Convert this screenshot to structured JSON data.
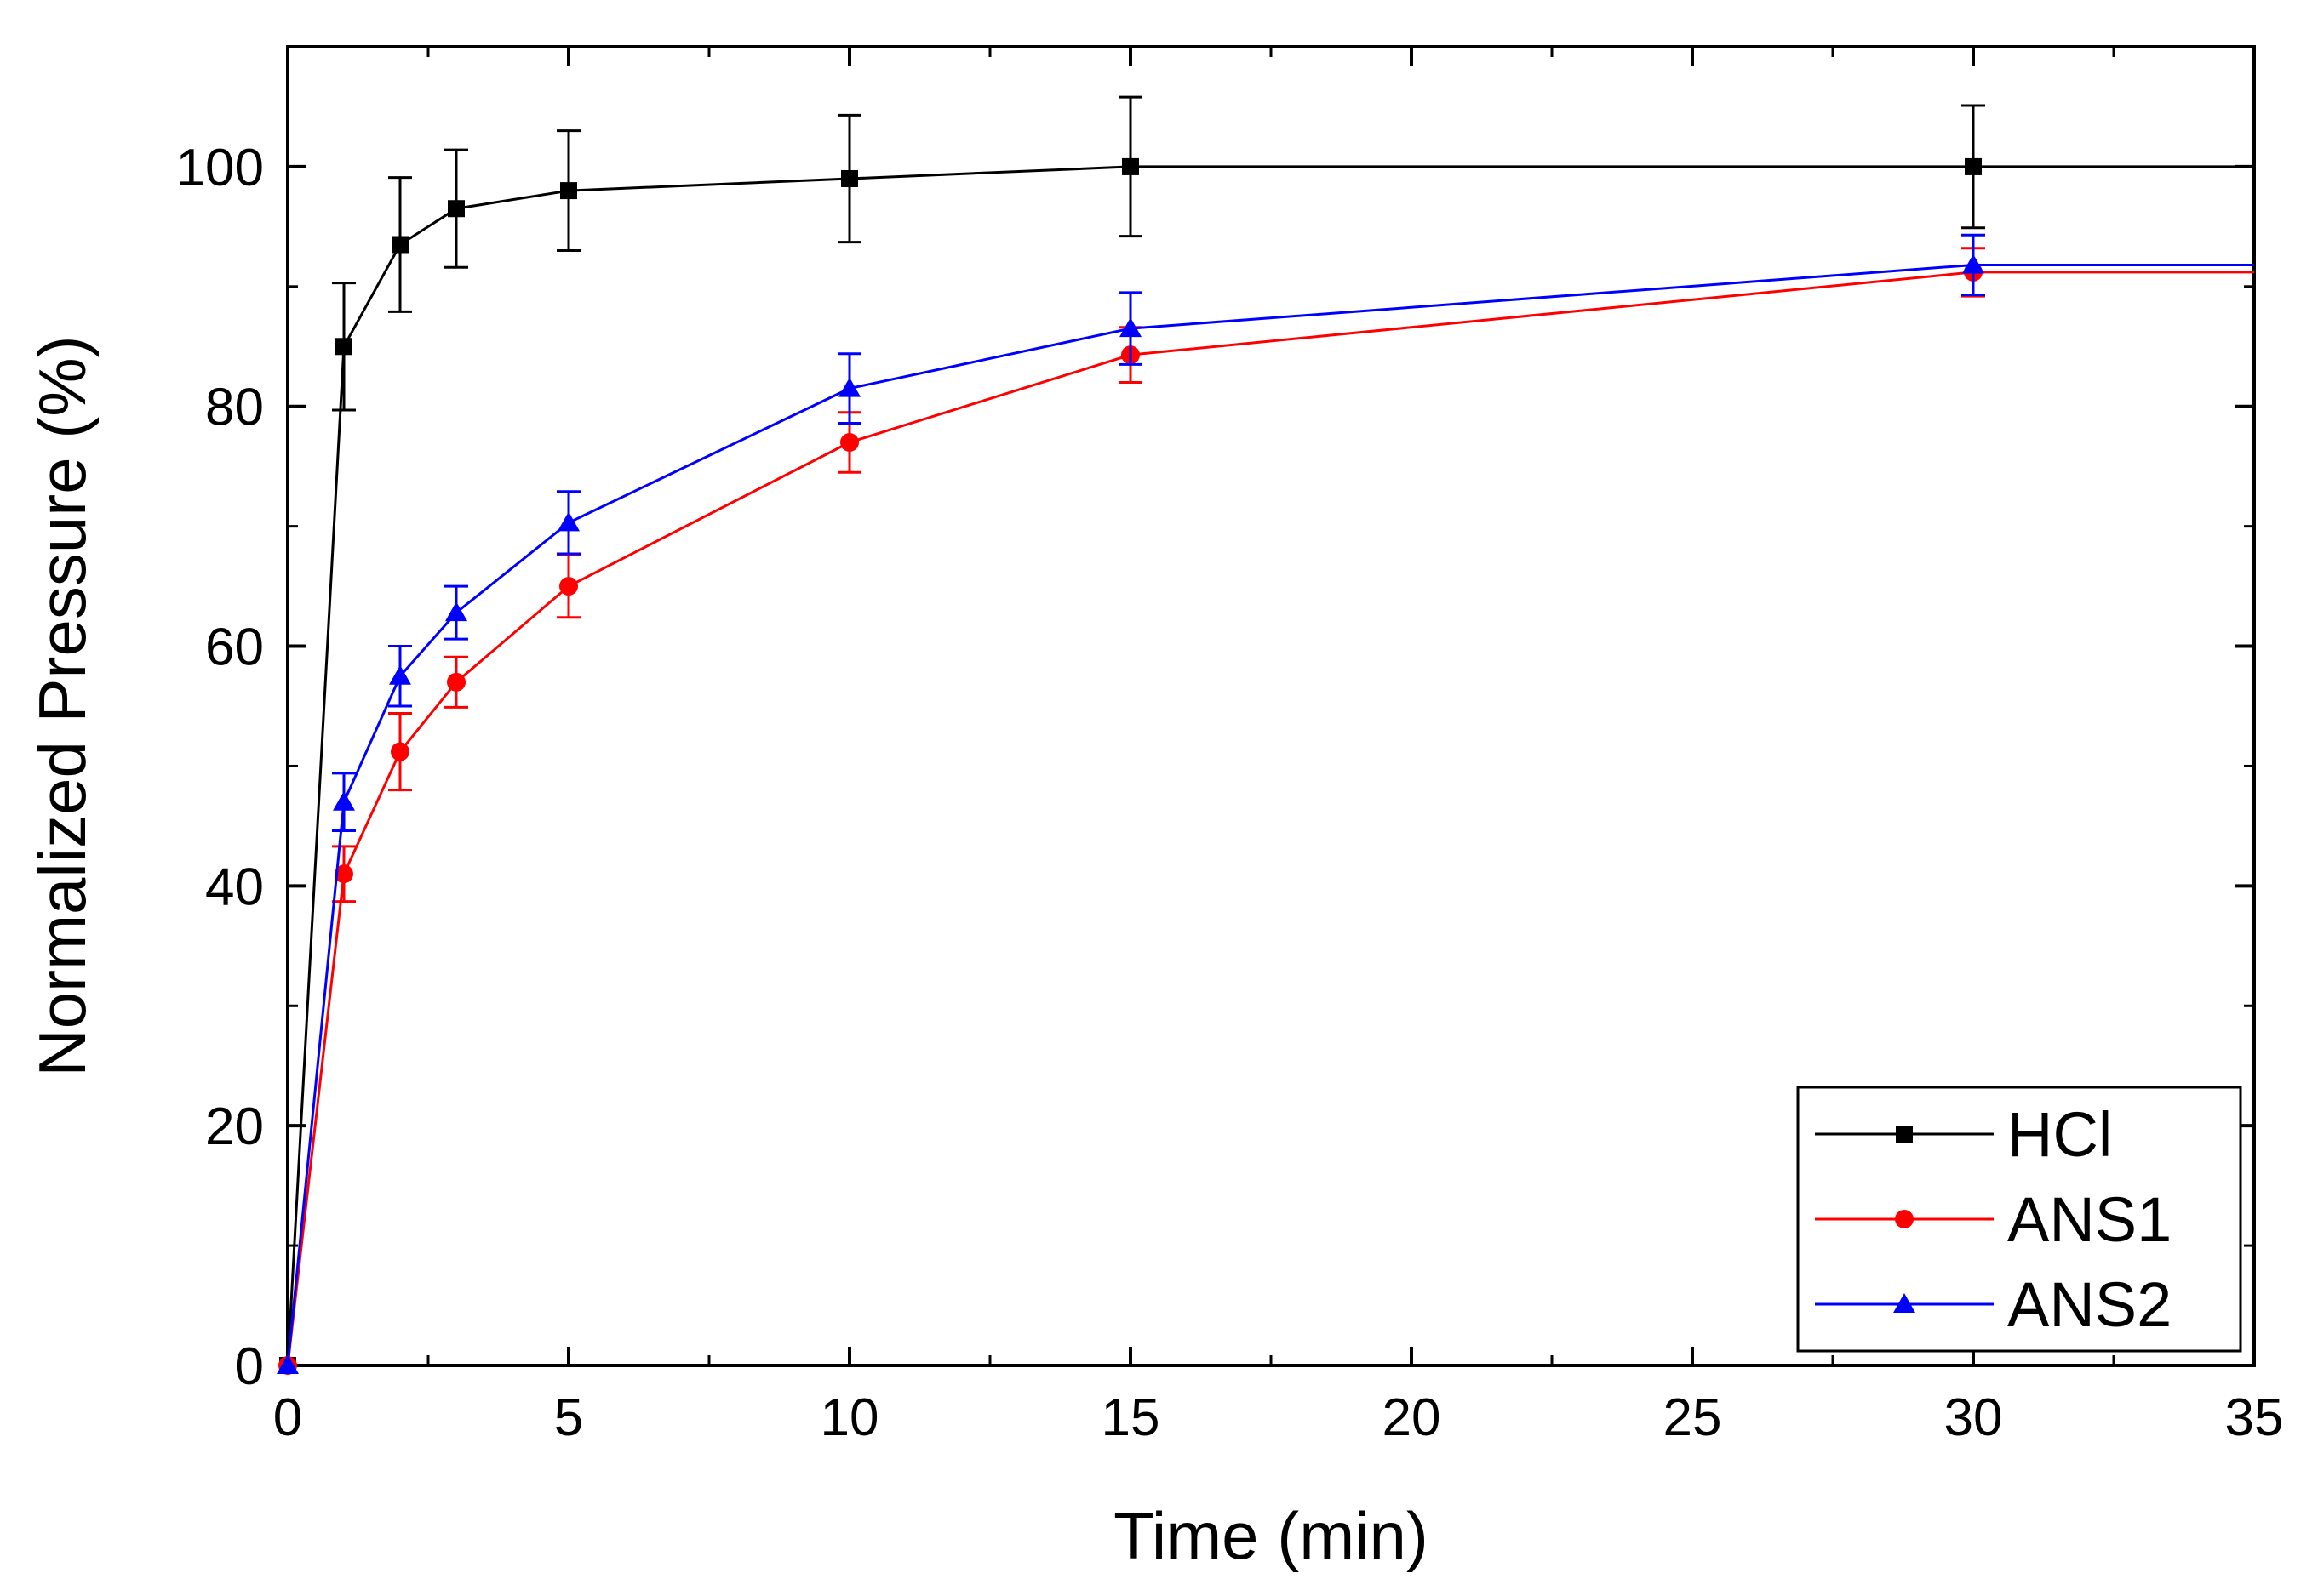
{
  "chart_data": {
    "type": "line",
    "xlabel": "Time (min)",
    "ylabel": "Normalized Pressure (%)",
    "xlim": [
      0,
      35
    ],
    "ylim": [
      0,
      110
    ],
    "x_ticks": [
      "0",
      "5",
      "10",
      "15",
      "20",
      "25",
      "30",
      "35"
    ],
    "x_tick_values": [
      0,
      5,
      10,
      15,
      20,
      25,
      30,
      35
    ],
    "y_ticks": [
      "0",
      "20",
      "40",
      "60",
      "80",
      "100"
    ],
    "y_tick_values": [
      0,
      20,
      40,
      60,
      80,
      100
    ],
    "grid": false,
    "legend_position": "bottom-right",
    "series": [
      {
        "name": "HCl",
        "color": "#000000",
        "marker": "square",
        "x": [
          0,
          1,
          2,
          3,
          5,
          10,
          15,
          30
        ],
        "y": [
          0,
          85,
          93.5,
          96.5,
          98,
          99,
          100,
          100
        ],
        "err": [
          0,
          5.3,
          5.6,
          4.9,
          5,
          5.3,
          5.8,
          5.1
        ],
        "extend_to": 35
      },
      {
        "name": "ANS1",
        "color": "#ff0000",
        "marker": "circle",
        "x": [
          0,
          1,
          2,
          3,
          5,
          10,
          15,
          30
        ],
        "y": [
          0,
          41,
          51.2,
          57,
          65,
          77,
          84.3,
          91.2
        ],
        "err": [
          0,
          2.3,
          3.2,
          2.1,
          2.6,
          2.5,
          2.3,
          2
        ],
        "extend_to": 35
      },
      {
        "name": "ANS2",
        "color": "#0000ff",
        "marker": "triangle",
        "x": [
          0,
          1,
          2,
          3,
          5,
          10,
          15,
          30
        ],
        "y": [
          0,
          47,
          57.5,
          62.8,
          70.3,
          81.5,
          86.5,
          91.8
        ],
        "err": [
          0,
          2.4,
          2.5,
          2.2,
          2.6,
          2.9,
          3,
          2.5
        ],
        "extend_to": 35
      }
    ]
  }
}
